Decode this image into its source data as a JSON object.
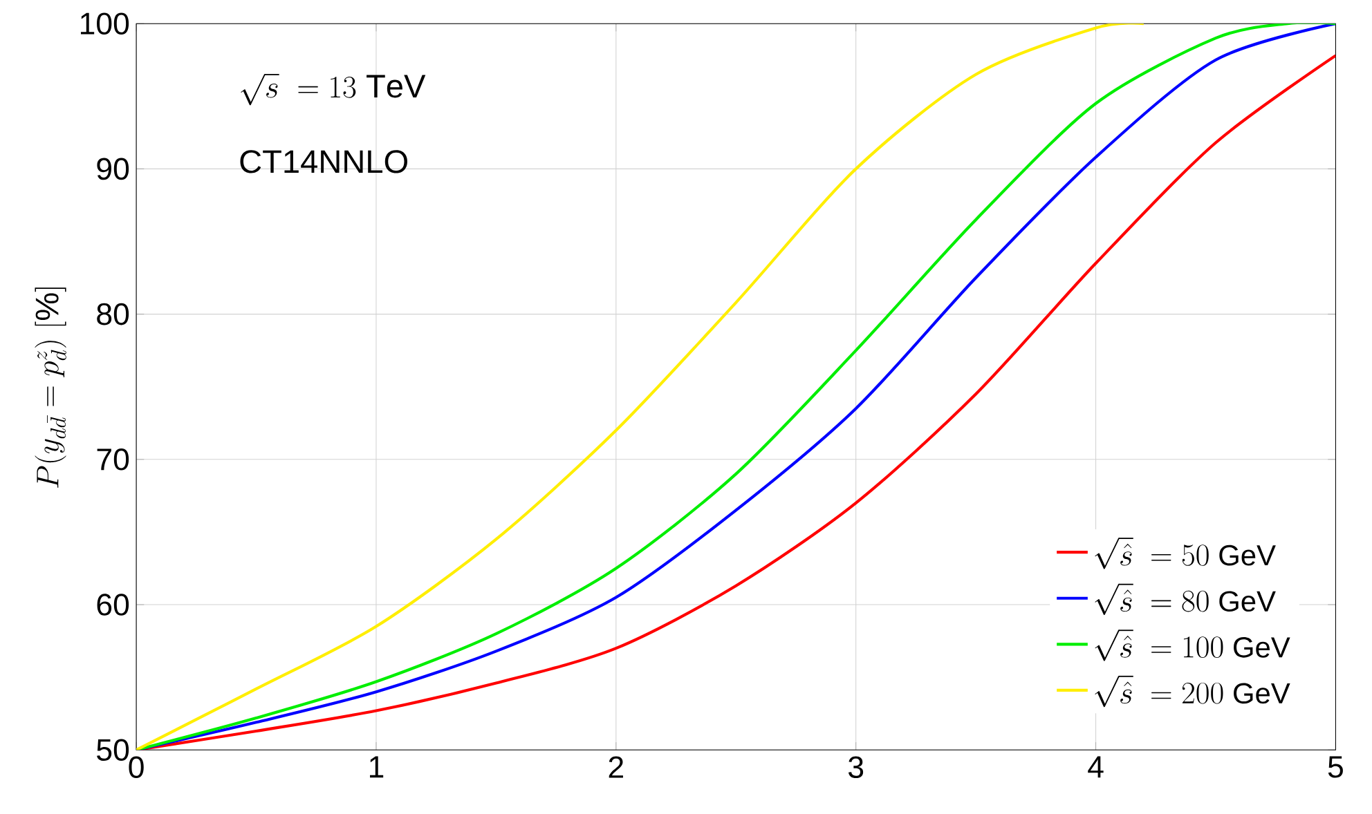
{
  "chart_data": {
    "type": "line",
    "ylabel": "P(y_{d\\bar{d}} = p_d^z)\\ [\\%]",
    "annotations": [
      "\\sqrt{s}\\ = 13\\ \\mathrm{TeV}",
      "CT14NNLO"
    ],
    "xlim": [
      0,
      5
    ],
    "ylim": [
      50,
      100
    ],
    "xticks": [
      0,
      1,
      2,
      3,
      4,
      5
    ],
    "yticks": [
      50,
      60,
      70,
      80,
      90,
      100
    ],
    "grid": true,
    "legend": "bottom right",
    "marker": "none",
    "line_style": "solid",
    "series": [
      {
        "name": "\\sqrt{\\hat{s}}\\ = 50\\ \\mathrm{GeV}",
        "color": "#ff0000",
        "x": [
          0,
          0.5,
          1,
          1.5,
          2,
          2.5,
          3,
          3.5,
          4,
          4.5,
          5
        ],
        "values": [
          50,
          51.3,
          52.7,
          54.6,
          57,
          61.3,
          67,
          74.5,
          83.5,
          91.8,
          97.8
        ]
      },
      {
        "name": "\\sqrt{\\hat{s}}\\ = 80\\ \\mathrm{GeV}",
        "color": "#0000ff",
        "x": [
          0,
          0.5,
          1,
          1.5,
          2,
          2.5,
          3,
          3.5,
          4,
          4.5,
          5
        ],
        "values": [
          50,
          51.9,
          54,
          56.8,
          60.5,
          66.5,
          73.5,
          82.5,
          90.8,
          97.5,
          100
        ]
      },
      {
        "name": "\\sqrt{\\hat{s}}\\ = 100\\ \\mathrm{GeV}",
        "color": "#00ee00",
        "x": [
          0,
          0.5,
          1,
          1.5,
          2,
          2.5,
          3,
          3.5,
          4,
          4.5,
          4.8,
          5
        ],
        "values": [
          50,
          52.2,
          54.7,
          58,
          62.5,
          69,
          77.5,
          86.5,
          94.5,
          99,
          100,
          100
        ]
      },
      {
        "name": "\\sqrt{\\hat{s}}\\ = 200\\ \\mathrm{GeV}",
        "color": "#ffee00",
        "x": [
          0,
          0.5,
          1,
          1.5,
          2,
          2.5,
          3,
          3.5,
          4,
          4.2
        ],
        "values": [
          50,
          54.2,
          58.5,
          64.5,
          72,
          80.8,
          90,
          96.5,
          99.7,
          100
        ]
      }
    ]
  }
}
